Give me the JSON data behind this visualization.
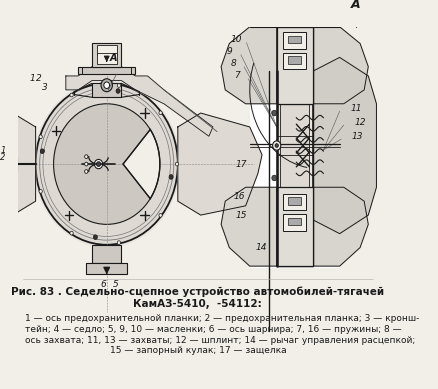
{
  "title_line1": "Рис. 83 . Седельно-сцепное устройство автомобилей-тягачей",
  "title_line2": "КамАЗ-5410,  -54112:",
  "caption_line1": "1 — ось предохранительной планки; 2 — предохранительная планка; 3 — кронш-",
  "caption_line2": "тейн; 4 — седло; 5, 9, 10 — масленки; 6 — ось шарнира; 7, 16 — пружины; 8 —",
  "caption_line3": "ось захвата; 11, 13 — захваты; 12 — шплинт; 14 — рычаг управления расцепкой;",
  "caption_line4": "15 — запорный кулак; 17 — защелка",
  "bg_color": "#f2efe9",
  "text_color": "#1a1a1a",
  "diagram_color": "#1a1a1a",
  "fig_width": 4.39,
  "fig_height": 3.89,
  "dpi": 100
}
